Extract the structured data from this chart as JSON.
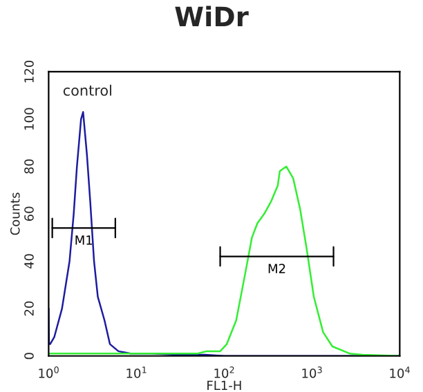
{
  "chart_data": {
    "type": "line",
    "title": "WiDr",
    "xlabel": "FL1-H",
    "ylabel": "Counts",
    "log": "x",
    "grid": false,
    "legend": false,
    "marker": "none",
    "xlim": [
      1,
      10000
    ],
    "xticks": [
      {
        "value": 1,
        "label": "10$^{0}$"
      },
      {
        "value": 10,
        "label": "10$^{1}$"
      },
      {
        "value": 100,
        "label": "10$^{2}$"
      },
      {
        "value": 1000,
        "label": "10$^{3}$"
      },
      {
        "value": 10000,
        "label": "10$^{4}$"
      }
    ],
    "ylim": [
      0,
      120
    ],
    "yticks": [
      0,
      20,
      40,
      60,
      80,
      100,
      120
    ],
    "annotations": [
      "control"
    ],
    "series": [
      {
        "color": "#1c1ca0",
        "x": [
          1.0,
          1.01,
          1.04,
          1.16,
          1.42,
          1.73,
          1.93,
          2.1,
          2.34,
          2.47,
          2.73,
          2.98,
          3.29,
          3.63,
          4.33,
          4.99,
          6.23,
          8.57,
          15.1,
          30,
          60,
          100,
          200,
          10000
        ],
        "values": [
          20,
          5,
          5,
          8,
          20,
          40,
          60,
          80,
          100,
          103,
          85,
          65,
          40,
          25,
          15,
          5,
          2,
          1,
          1,
          0.5,
          0.5,
          0,
          0,
          0
        ]
      },
      {
        "color": "#33ee33",
        "x": [
          1,
          10,
          50,
          63.2,
          90.2,
          107,
          137,
          174,
          207,
          239,
          286,
          340,
          408,
          430,
          510,
          611,
          733,
          872,
          1050,
          1340,
          1710,
          2700,
          3750,
          10000
        ],
        "values": [
          1,
          1,
          1,
          2,
          2,
          5,
          15,
          35,
          50,
          56,
          60,
          65,
          72,
          78,
          80,
          75,
          62,
          45,
          25,
          10,
          4,
          1,
          0.5,
          0
        ]
      },
      {
        "name": "M1",
        "color": "#000000",
        "x": [
          1.1,
          5.75
        ],
        "values": [
          54,
          54
        ]
      },
      {
        "name": "M2",
        "color": "#000000",
        "x": [
          90,
          1760
        ],
        "values": [
          42,
          42
        ]
      }
    ]
  }
}
